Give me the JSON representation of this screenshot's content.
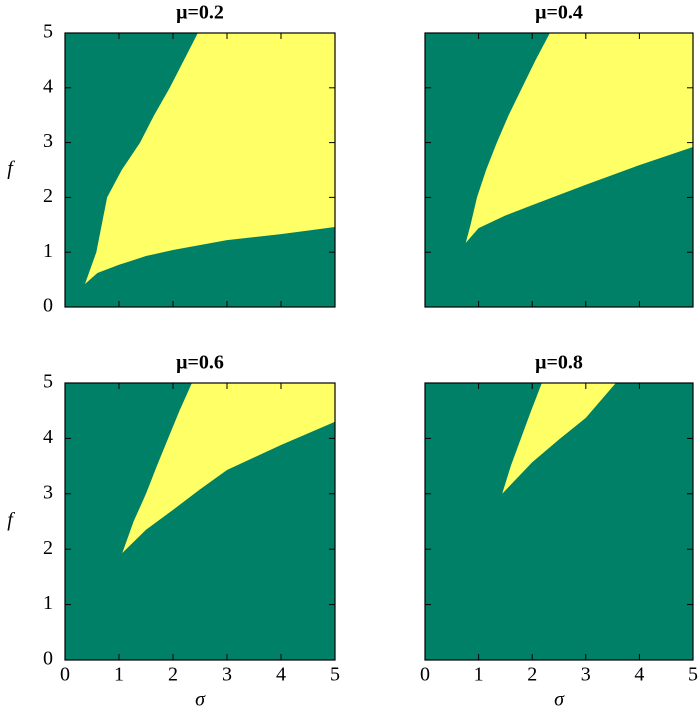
{
  "chart_data": [
    {
      "type": "region",
      "title": "μ=0.2",
      "ylabel": "f",
      "color": "#ffff66",
      "background": "#008066",
      "boundaries": [
        {
          "x": [
            0.37,
            0.58,
            0.78,
            1.05,
            1.39,
            1.65,
            1.94,
            2.2,
            2.46
          ],
          "y": [
            0.42,
            1.0,
            2.0,
            2.5,
            3.0,
            3.5,
            4.0,
            4.5,
            5.0
          ]
        },
        {
          "x": [
            0.37,
            0.6,
            1,
            1.5,
            2,
            3,
            4,
            5
          ],
          "y": [
            0.42,
            0.62,
            0.77,
            0.93,
            1.04,
            1.22,
            1.33,
            1.46
          ]
        }
      ],
      "xlim": [
        0,
        5
      ],
      "ylim": [
        0,
        5
      ],
      "xticks": [
        0,
        1,
        2,
        3,
        4,
        5
      ],
      "yticks": [
        0,
        1,
        2,
        3,
        4,
        5
      ],
      "show_xticklabels": false,
      "show_yticklabels": true
    },
    {
      "type": "region",
      "title": "μ=0.4",
      "color": "#ffff66",
      "background": "#008066",
      "boundaries": [
        {
          "x": [
            0.76,
            0.85,
            0.97,
            1.14,
            1.34,
            1.56,
            1.81,
            2.06,
            2.33
          ],
          "y": [
            1.17,
            1.5,
            2.0,
            2.5,
            3.0,
            3.5,
            4.0,
            4.5,
            5.0
          ]
        },
        {
          "x": [
            0.76,
            1,
            1.5,
            2,
            3,
            4,
            5
          ],
          "y": [
            1.17,
            1.44,
            1.67,
            1.86,
            2.23,
            2.59,
            2.92
          ]
        }
      ],
      "xlim": [
        0,
        5
      ],
      "ylim": [
        0,
        5
      ],
      "xticks": [
        0,
        1,
        2,
        3,
        4,
        5
      ],
      "yticks": [
        0,
        1,
        2,
        3,
        4,
        5
      ],
      "show_xticklabels": false,
      "show_yticklabels": false
    },
    {
      "type": "region",
      "title": "μ=0.6",
      "xlabel": "σ",
      "ylabel": "f",
      "color": "#ffff66",
      "background": "#008066",
      "boundaries": [
        {
          "x": [
            1.06,
            1.27,
            1.5,
            1.7,
            1.91,
            2.12,
            2.35
          ],
          "y": [
            1.93,
            2.5,
            3.0,
            3.5,
            4.0,
            4.5,
            5.0
          ]
        },
        {
          "x": [
            1.06,
            1.5,
            2,
            2.5,
            3,
            4,
            5
          ],
          "y": [
            1.93,
            2.35,
            2.71,
            3.08,
            3.43,
            3.88,
            4.3
          ]
        }
      ],
      "xlim": [
        0,
        5
      ],
      "ylim": [
        0,
        5
      ],
      "xticks": [
        0,
        1,
        2,
        3,
        4,
        5
      ],
      "yticks": [
        0,
        1,
        2,
        3,
        4,
        5
      ],
      "show_xticklabels": true,
      "show_yticklabels": true
    },
    {
      "type": "region",
      "title": "μ=0.8",
      "xlabel": "σ",
      "color": "#ffff66",
      "background": "#008066",
      "boundaries": [
        {
          "x": [
            1.44,
            1.6,
            1.79,
            1.98,
            2.18
          ],
          "y": [
            3.0,
            3.5,
            4.0,
            4.5,
            5.0
          ]
        },
        {
          "x": [
            1.44,
            2,
            2.5,
            3,
            3.56
          ],
          "y": [
            3.0,
            3.57,
            3.98,
            4.37,
            5.0
          ]
        }
      ],
      "xlim": [
        0,
        5
      ],
      "ylim": [
        0,
        5
      ],
      "xticks": [
        0,
        1,
        2,
        3,
        4,
        5
      ],
      "yticks": [
        0,
        1,
        2,
        3,
        4,
        5
      ],
      "show_xticklabels": true,
      "show_yticklabels": false
    }
  ]
}
